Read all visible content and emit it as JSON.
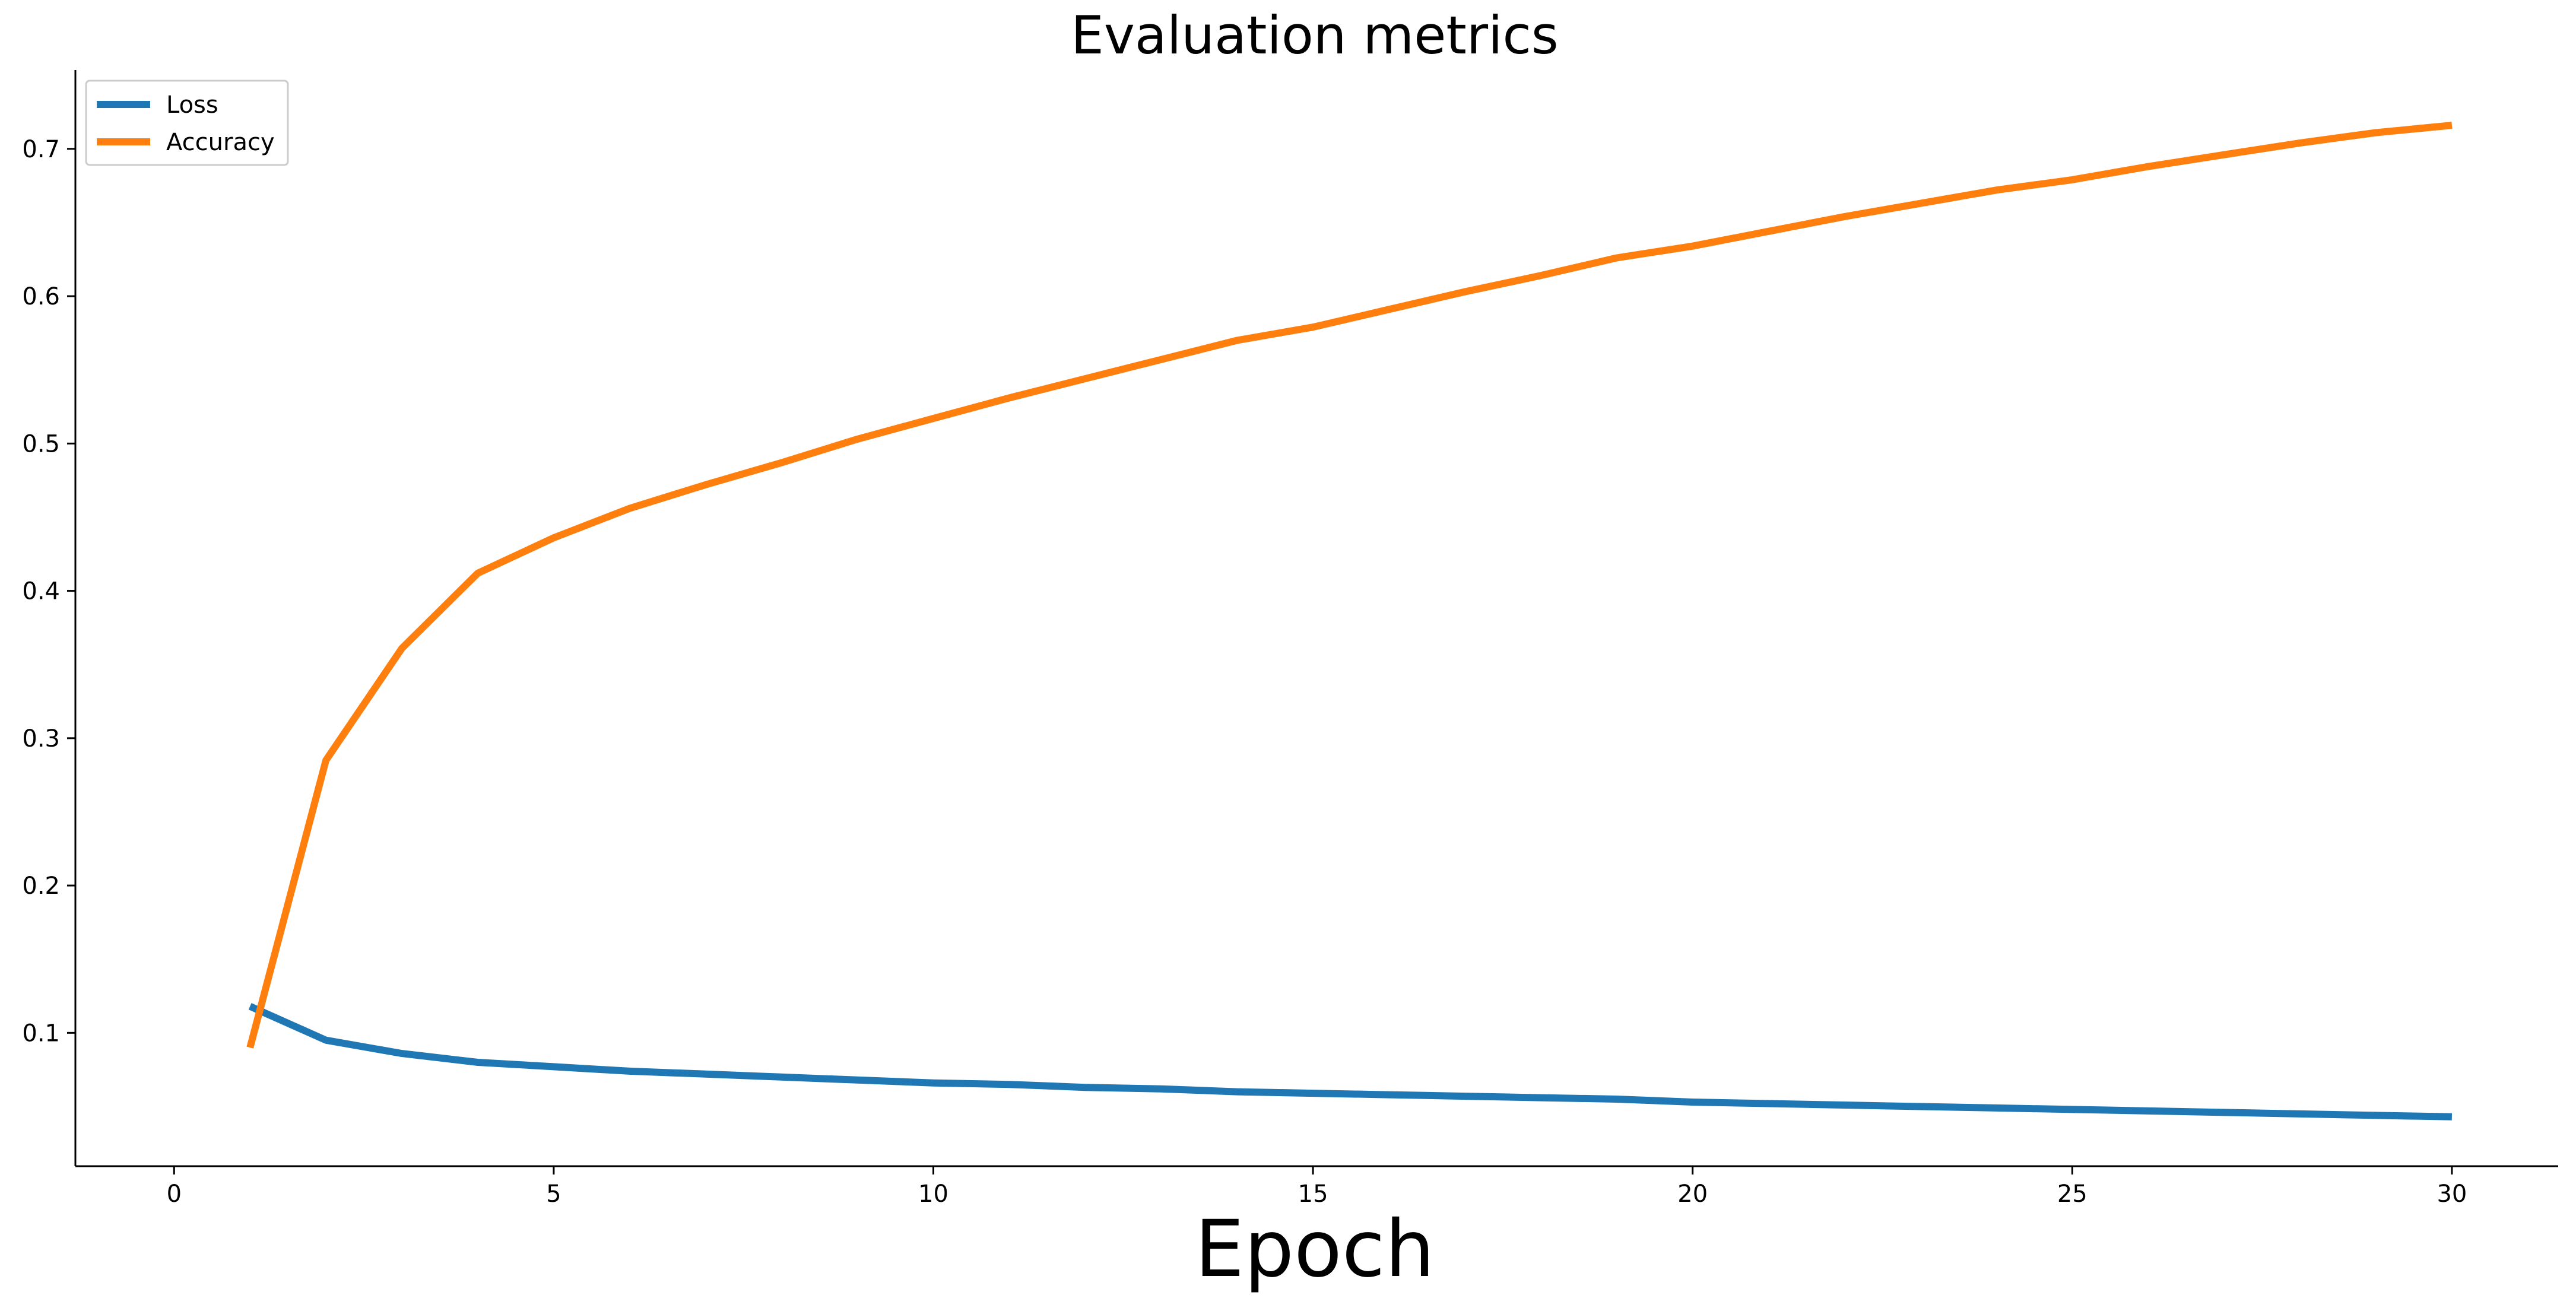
{
  "chart_data": {
    "type": "line",
    "title": "Evaluation metrics",
    "xlabel": "Epoch",
    "ylabel": "",
    "xlim": [
      -1.3,
      31.4
    ],
    "ylim": [
      0.0095,
      0.7535
    ],
    "xticks": [
      0,
      5,
      10,
      15,
      20,
      25,
      30
    ],
    "yticks": [
      0.1,
      0.2,
      0.3,
      0.4,
      0.5,
      0.6,
      0.7
    ],
    "grid": false,
    "legend_position": "top-left",
    "x": [
      1,
      2,
      3,
      4,
      5,
      6,
      7,
      8,
      9,
      10,
      11,
      12,
      13,
      14,
      15,
      16,
      17,
      18,
      19,
      20,
      21,
      22,
      23,
      24,
      25,
      26,
      27,
      28,
      29,
      30
    ],
    "series": [
      {
        "name": "Loss",
        "color": "#1f77b4",
        "values": [
          0.118,
          0.095,
          0.086,
          0.08,
          0.077,
          0.074,
          0.072,
          0.07,
          0.068,
          0.066,
          0.065,
          0.063,
          0.062,
          0.06,
          0.059,
          0.058,
          0.057,
          0.056,
          0.055,
          0.053,
          0.052,
          0.051,
          0.05,
          0.049,
          0.048,
          0.047,
          0.046,
          0.045,
          0.044,
          0.043
        ]
      },
      {
        "name": "Accuracy",
        "color": "#ff7f0e",
        "values": [
          0.09,
          0.285,
          0.361,
          0.412,
          0.436,
          0.456,
          0.472,
          0.487,
          0.503,
          0.517,
          0.531,
          0.544,
          0.557,
          0.57,
          0.579,
          0.591,
          0.603,
          0.614,
          0.626,
          0.634,
          0.644,
          0.654,
          0.663,
          0.672,
          0.679,
          0.688,
          0.696,
          0.704,
          0.711,
          0.716
        ]
      }
    ]
  }
}
